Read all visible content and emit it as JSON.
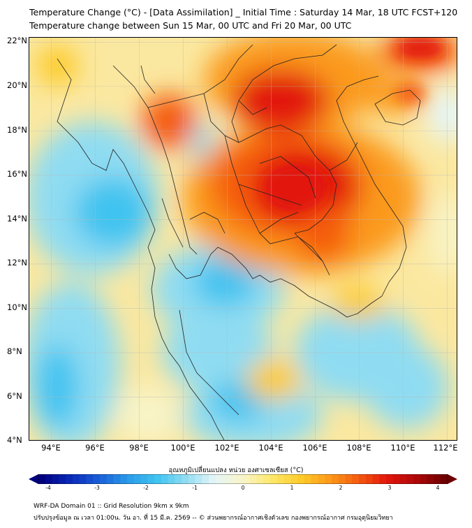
{
  "header": {
    "title_line1": "Temperature Change (°C) - [Data Assimilation] _ Initial Time : Saturday 14 Mar, 18 UTC FCST+120",
    "title_line2": "Temperature change between Sun 15 Mar, 00 UTC and Fri 20 Mar, 00 UTC"
  },
  "map": {
    "lat_labels": [
      "22°N",
      "20°N",
      "18°N",
      "16°N",
      "14°N",
      "12°N",
      "10°N",
      "8°N",
      "6°N",
      "4°N"
    ],
    "lon_labels": [
      "94°E",
      "96°E",
      "98°E",
      "100°E",
      "102°E",
      "104°E",
      "106°E",
      "108°E",
      "110°E",
      "112°E"
    ],
    "lat_range": [
      4,
      22.2
    ],
    "lon_range": [
      93,
      112.5
    ],
    "gridlines": true
  },
  "colorbar": {
    "title": "อุณหภูมิเปลี่ยนแปลง หน่วย องศาเซลเซียส (°C)",
    "ticks": [
      "-4",
      "-3",
      "-2",
      "-1",
      "0",
      "1",
      "2",
      "3",
      "4"
    ],
    "range": [
      -4,
      4
    ],
    "colors": [
      "#000080",
      "#0a2ab8",
      "#1a5fd8",
      "#2b9be8",
      "#3fc3f0",
      "#8fdcf2",
      "#e6f6f8",
      "#f8f4c8",
      "#fde86a",
      "#fdcb2a",
      "#fb9a1a",
      "#f45c10",
      "#e2170c",
      "#b0080a",
      "#6e0000"
    ]
  },
  "footer": {
    "line1": "WRF-DA Domain 01 :: Grid Resolution 9km x 9km",
    "line2": "ปรับปรุงข้อมูล ณ เวลา 01:00น. วัน อา. ที่ 15 มี.ค. 2569 -- © ส่วนพยากรณ์อากาศเชิงตัวเลข กองพยากรณ์อากาศ กรมอุตุนิยมวิทยา"
  }
}
